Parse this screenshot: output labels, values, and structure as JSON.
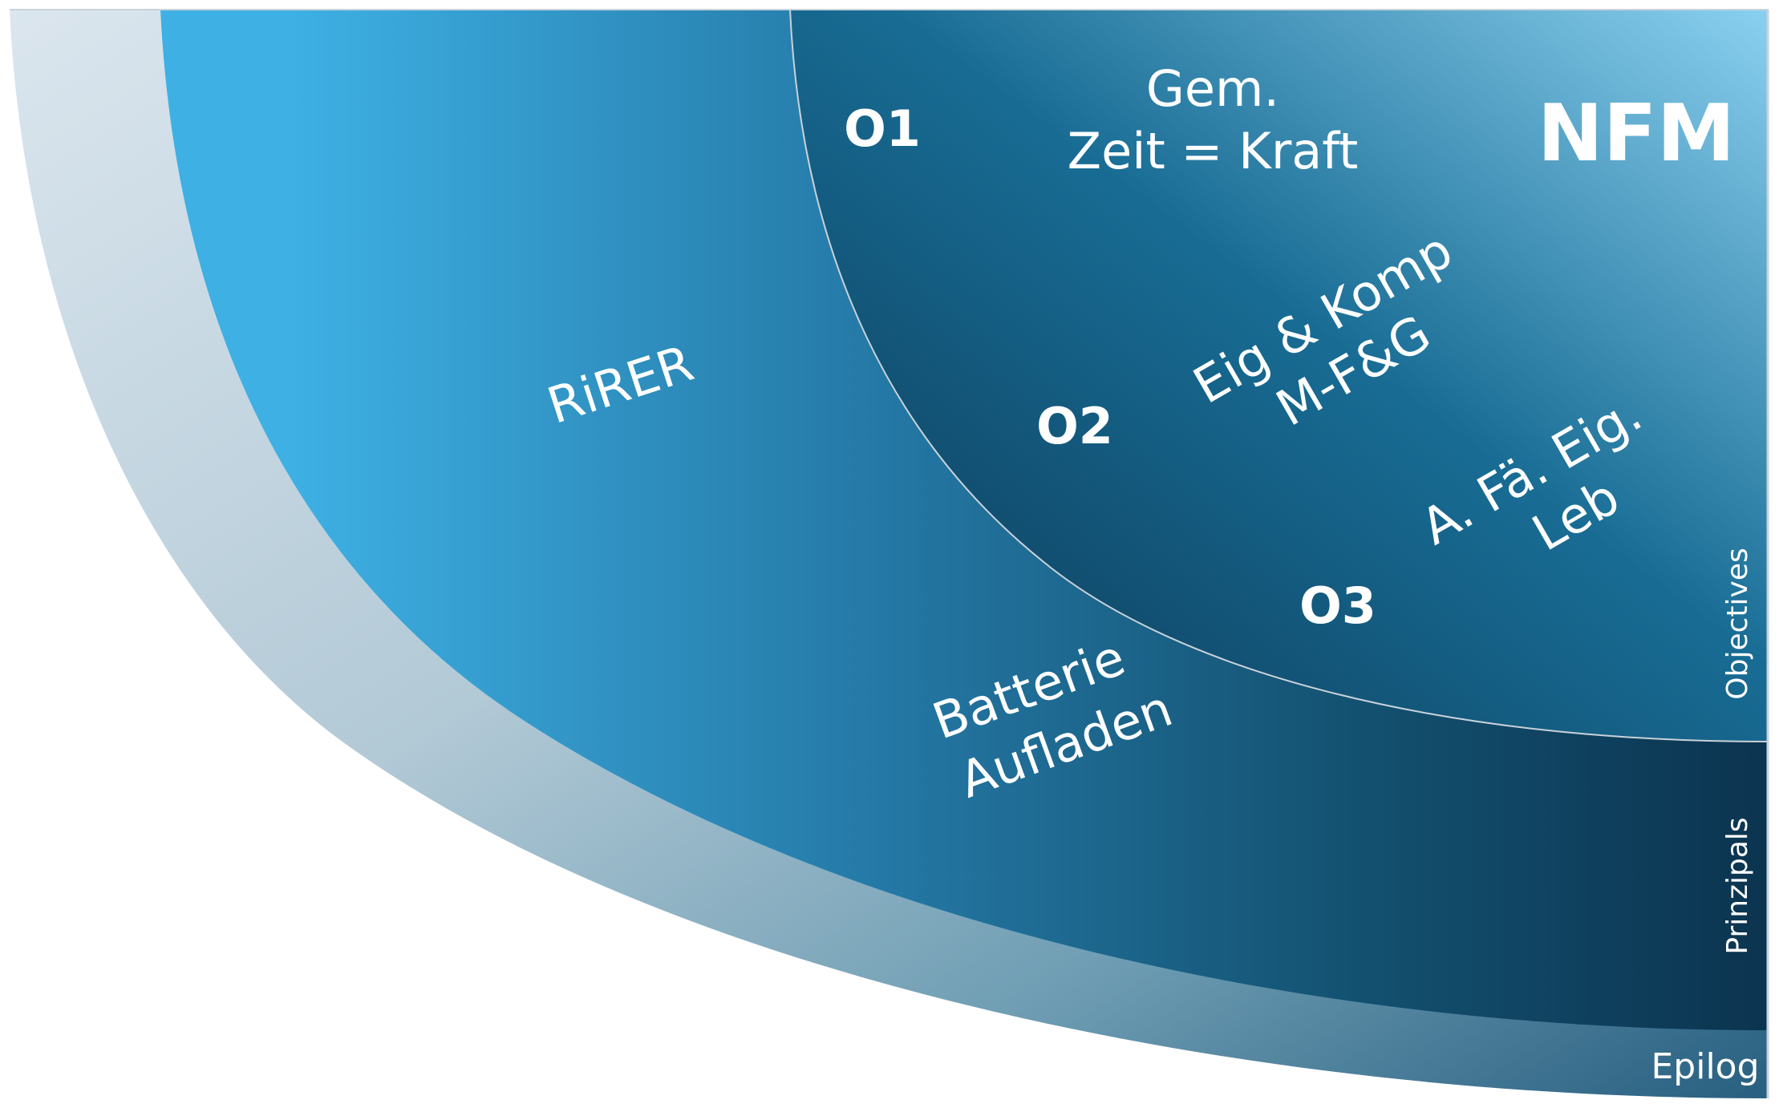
{
  "brand": "NFM",
  "layers": {
    "epilog": "Epilog",
    "prinzipals": "Prinzipals",
    "objectives": "Objectives"
  },
  "principles": {
    "rirer": "RiRER",
    "battery": [
      "Batterie",
      "Aufladen"
    ]
  },
  "objectives": [
    {
      "number": "O1",
      "lines": [
        "Gem.",
        "Zeit = Kraft"
      ]
    },
    {
      "number": "O2",
      "lines": [
        "Eig & Komp",
        "M-F&G"
      ]
    },
    {
      "number": "O3",
      "lines": [
        "A. Fä. Eig.",
        "Leb"
      ]
    }
  ],
  "colors": {
    "outer_band_light": "#dbe6ee",
    "outer_band_dark": "#285f80",
    "middle_light": "#3eb0e4",
    "middle_dark": "#0d3a57",
    "inner_dark": "#0f4565",
    "inner_light": "#86ccec",
    "border": "#c8d2da"
  }
}
